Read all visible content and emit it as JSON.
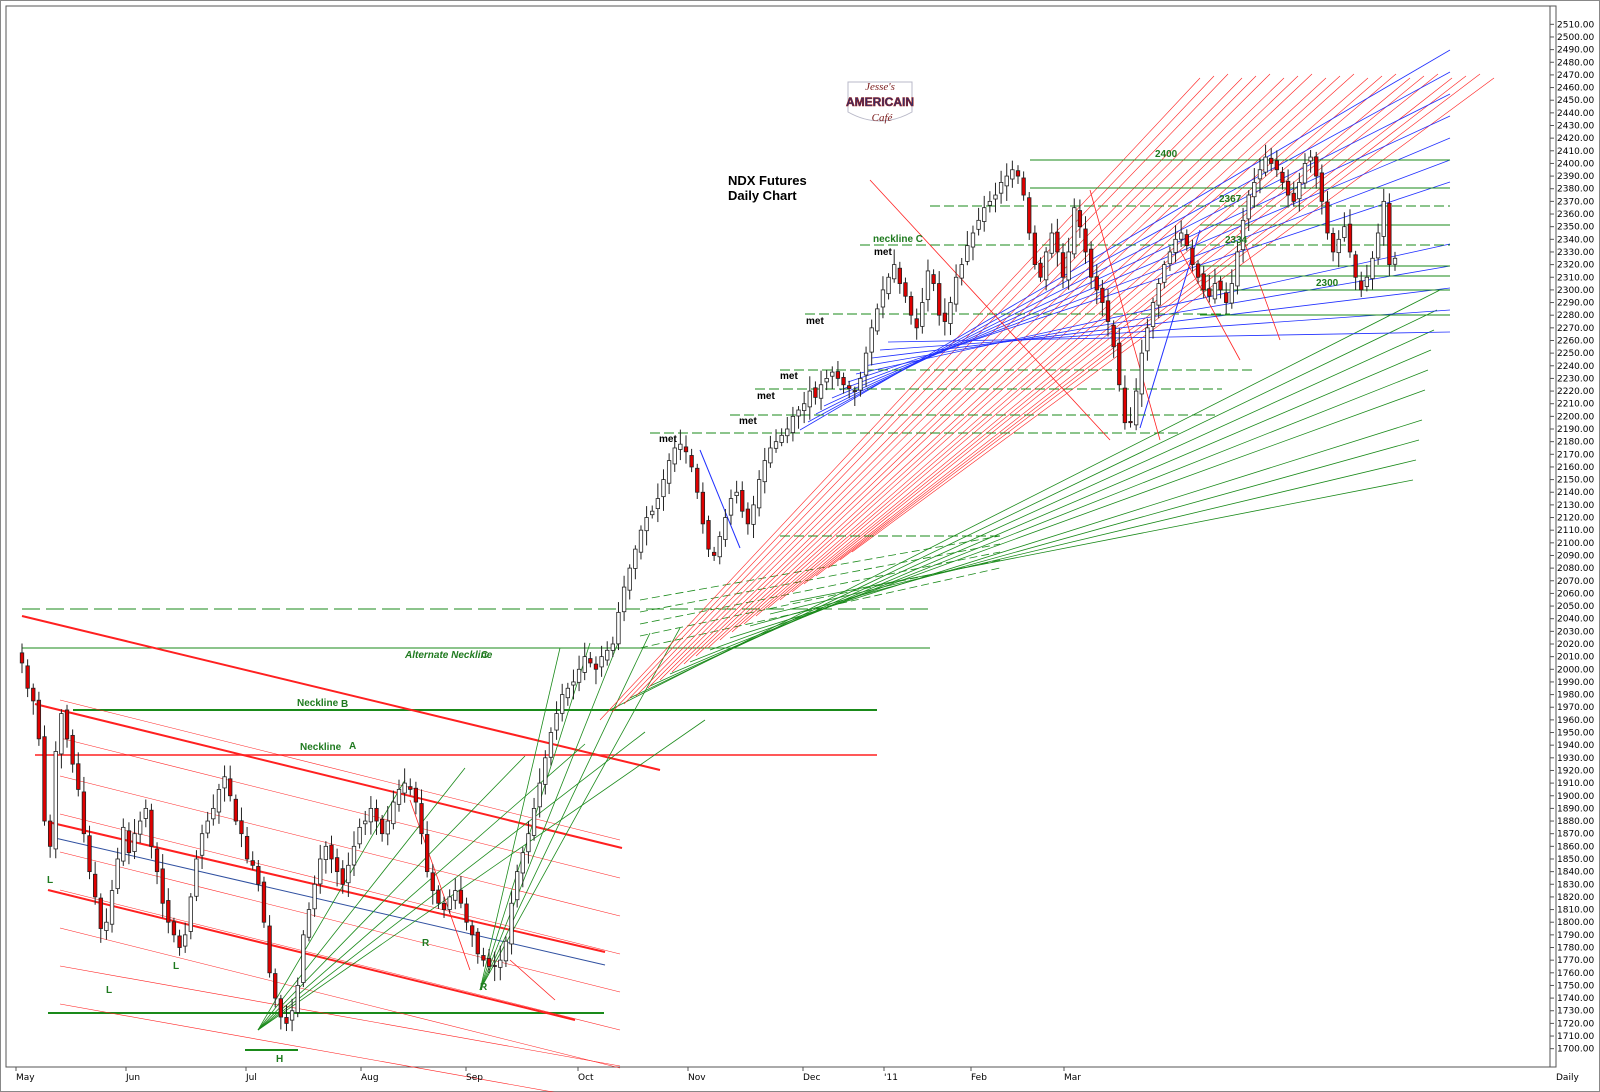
{
  "chart_data": {
    "type": "candlestick",
    "title": "NDX  Futures",
    "subtitle": "Daily Chart",
    "logo": {
      "line1": "Jesse's",
      "line2": "AMERICAIN",
      "line3": "Café"
    },
    "timeframe_label": "Daily",
    "ylim": [
      1695,
      2515
    ],
    "y_ticks": [
      "2510.00",
      "2500.00",
      "2490.00",
      "2480.00",
      "2470.00",
      "2460.00",
      "2450.00",
      "2440.00",
      "2430.00",
      "2420.00",
      "2410.00",
      "2400.00",
      "2390.00",
      "2380.00",
      "2370.00",
      "2360.00",
      "2350.00",
      "2340.00",
      "2330.00",
      "2320.00",
      "2310.00",
      "2300.00",
      "2290.00",
      "2280.00",
      "2270.00",
      "2260.00",
      "2250.00",
      "2240.00",
      "2230.00",
      "2220.00",
      "2210.00",
      "2200.00",
      "2190.00",
      "2180.00",
      "2170.00",
      "2160.00",
      "2150.00",
      "2140.00",
      "2130.00",
      "2120.00",
      "2110.00",
      "2100.00",
      "2090.00",
      "2080.00",
      "2070.00",
      "2060.00",
      "2050.00",
      "2040.00",
      "2030.00",
      "2020.00",
      "2010.00",
      "2000.00",
      "1990.00",
      "1980.00",
      "1970.00",
      "1960.00",
      "1950.00",
      "1940.00",
      "1930.00",
      "1920.00",
      "1910.00",
      "1900.00",
      "1890.00",
      "1880.00",
      "1870.00",
      "1860.00",
      "1850.00",
      "1840.00",
      "1830.00",
      "1820.00",
      "1810.00",
      "1800.00",
      "1790.00",
      "1780.00",
      "1770.00",
      "1760.00",
      "1750.00",
      "1740.00",
      "1730.00",
      "1720.00",
      "1710.00",
      "1700.00"
    ],
    "x_ticks": [
      "May",
      "Jun",
      "Jul",
      "Aug",
      "Sep",
      "Oct",
      "Nov",
      "Dec",
      "'11",
      "Feb",
      "Mar"
    ],
    "annotations": [
      {
        "text": "Neckline",
        "suffix": "B",
        "color": "#1f7a1f"
      },
      {
        "text": "Neckline",
        "suffix": "A",
        "color": "#1f7a1f"
      },
      {
        "text": "Alternate Neckline",
        "suffix": "C",
        "color": "#1f7a1f"
      },
      {
        "text": "neckline C",
        "color": "#1f7a1f"
      },
      {
        "text": "met",
        "color": "#000"
      },
      {
        "text": "2400",
        "color": "#1f7a1f"
      },
      {
        "text": "2367",
        "color": "#1f7a1f"
      },
      {
        "text": "2334",
        "color": "#1f7a1f"
      },
      {
        "text": "2300",
        "color": "#1f7a1f"
      },
      {
        "text": "L",
        "color": "#1f7a1f"
      },
      {
        "text": "R",
        "color": "#1f7a1f"
      },
      {
        "text": "H",
        "color": "#1f7a1f"
      }
    ],
    "closes_approx": [
      2005,
      1985,
      1975,
      1945,
      1880,
      1860,
      1935,
      1965,
      1945,
      1925,
      1905,
      1870,
      1840,
      1820,
      1795,
      1800,
      1825,
      1850,
      1875,
      1855,
      1870,
      1880,
      1890,
      1860,
      1840,
      1815,
      1800,
      1790,
      1780,
      1790,
      1820,
      1850,
      1870,
      1880,
      1890,
      1905,
      1915,
      1900,
      1880,
      1870,
      1850,
      1845,
      1830,
      1800,
      1760,
      1740,
      1725,
      1720,
      1730,
      1750,
      1790,
      1810,
      1830,
      1850,
      1860,
      1850,
      1840,
      1830,
      1845,
      1860,
      1875,
      1880,
      1890,
      1880,
      1870,
      1880,
      1895,
      1905,
      1910,
      1905,
      1895,
      1870,
      1840,
      1825,
      1815,
      1810,
      1820,
      1825,
      1815,
      1800,
      1790,
      1775,
      1770,
      1765,
      1765,
      1770,
      1785,
      1815,
      1840,
      1855,
      1870,
      1890,
      1910,
      1930,
      1950,
      1965,
      1980,
      1985,
      1990,
      2000,
      2010,
      2005,
      2000,
      2010,
      2015,
      2020,
      2045,
      2065,
      2080,
      2095,
      2110,
      2120,
      2125,
      2135,
      2150,
      2165,
      2175,
      2178,
      2172,
      2160,
      2140,
      2115,
      2095,
      2090,
      2105,
      2120,
      2135,
      2140,
      2125,
      2115,
      2130,
      2150,
      2165,
      2175,
      2180,
      2185,
      2190,
      2200,
      2205,
      2210,
      2220,
      2215,
      2225,
      2230,
      2235,
      2230,
      2225,
      2222,
      2220,
      2230,
      2250,
      2270,
      2285,
      2300,
      2310,
      2320,
      2305,
      2295,
      2280,
      2270,
      2290,
      2315,
      2305,
      2280,
      2275,
      2290,
      2310,
      2320,
      2335,
      2345,
      2355,
      2365,
      2370,
      2375,
      2385,
      2390,
      2395,
      2390,
      2375,
      2345,
      2320,
      2310,
      2330,
      2345,
      2330,
      2310,
      2330,
      2365,
      2350,
      2330,
      2310,
      2300,
      2290,
      2275,
      2255,
      2225,
      2195,
      2195,
      2220,
      2250,
      2270,
      2290,
      2305,
      2320,
      2330,
      2340,
      2345,
      2335,
      2320,
      2310,
      2300,
      2295,
      2305,
      2300,
      2290,
      2305,
      2330,
      2355,
      2375,
      2385,
      2395,
      2405,
      2400,
      2395,
      2385,
      2375,
      2370,
      2385,
      2400,
      2405,
      2390,
      2370,
      2345,
      2330,
      2340,
      2350,
      2330,
      2310,
      2300,
      2310,
      2325,
      2345,
      2370,
      2320,
      2325
    ]
  }
}
